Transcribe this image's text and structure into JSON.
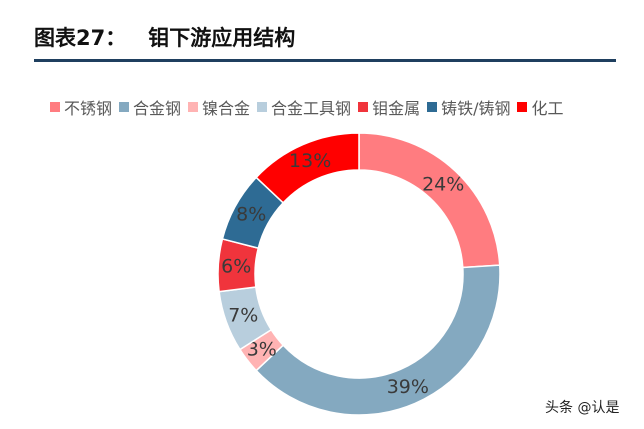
{
  "figure": {
    "label": "图表27：",
    "title": "钼下游应用结构"
  },
  "watermark": "头条 @认是",
  "chart_data": {
    "type": "pie",
    "donut": true,
    "start_angle_deg": 0,
    "direction": "clockwise",
    "legend_position": "top",
    "slices": [
      {
        "name": "不锈钢",
        "value": 24,
        "label": "24%",
        "color": "#ff7c80"
      },
      {
        "name": "合金钢",
        "value": 39,
        "label": "39%",
        "color": "#84a9c0"
      },
      {
        "name": "镍合金",
        "value": 3,
        "label": "3%",
        "color": "#ffb3b3"
      },
      {
        "name": "合金工具钢",
        "value": 7,
        "label": "7%",
        "color": "#b8cedd"
      },
      {
        "name": "钼金属",
        "value": 6,
        "label": "6%",
        "color": "#f0343c"
      },
      {
        "name": "铸铁/铸钢",
        "value": 8,
        "label": "8%",
        "color": "#2e6b94"
      },
      {
        "name": "化工",
        "value": 13,
        "label": "13%",
        "color": "#ff0000"
      }
    ]
  }
}
